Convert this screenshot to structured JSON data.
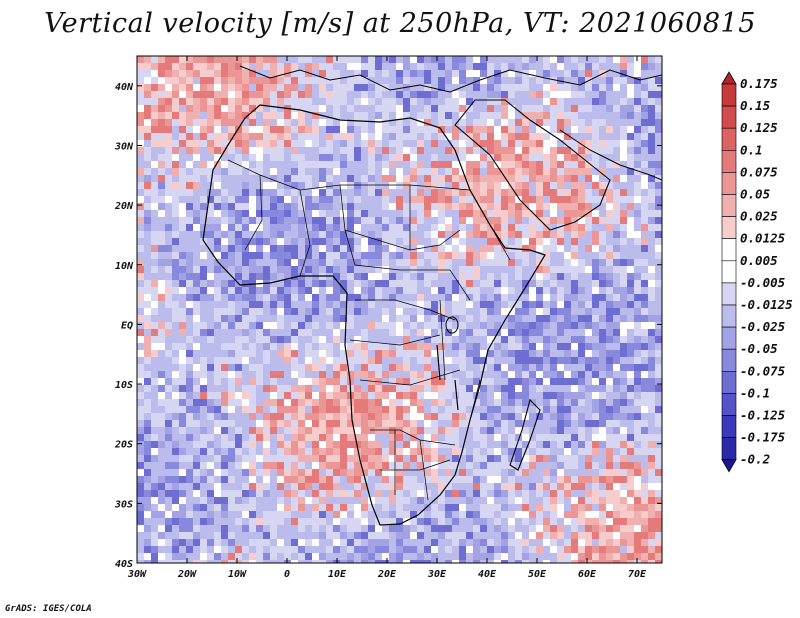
{
  "title": "Vertical velocity [m/s] at 250hPa, VT: 2021060815",
  "credit": "GrADS: IGES/COLA",
  "map": {
    "lon_range": [
      -30,
      75
    ],
    "lat_range": [
      -40,
      45
    ],
    "lon_ticks": [
      {
        "value": -30,
        "label": "30W"
      },
      {
        "value": -20,
        "label": "20W"
      },
      {
        "value": -10,
        "label": "10W"
      },
      {
        "value": 0,
        "label": "0"
      },
      {
        "value": 10,
        "label": "10E"
      },
      {
        "value": 20,
        "label": "20E"
      },
      {
        "value": 30,
        "label": "30E"
      },
      {
        "value": 40,
        "label": "40E"
      },
      {
        "value": 50,
        "label": "50E"
      },
      {
        "value": 60,
        "label": "60E"
      },
      {
        "value": 70,
        "label": "70E"
      }
    ],
    "lat_ticks": [
      {
        "value": 40,
        "label": "40N"
      },
      {
        "value": 30,
        "label": "30N"
      },
      {
        "value": 20,
        "label": "20N"
      },
      {
        "value": 10,
        "label": "10N"
      },
      {
        "value": 0,
        "label": "EQ"
      },
      {
        "value": -10,
        "label": "10S"
      },
      {
        "value": -20,
        "label": "20S"
      },
      {
        "value": -30,
        "label": "30S"
      },
      {
        "value": -40,
        "label": "40S"
      }
    ]
  },
  "colorbar": {
    "levels": [
      "0.175",
      "0.15",
      "0.125",
      "0.1",
      "0.075",
      "0.05",
      "0.025",
      "0.0125",
      "0.005",
      "-0.005",
      "-0.0125",
      "-0.025",
      "-0.05",
      "-0.075",
      "-0.1",
      "-0.125",
      "-0.175",
      "-0.2"
    ],
    "colors": [
      "#b0262c",
      "#c73a3a",
      "#d24c4c",
      "#dd6363",
      "#e47a7a",
      "#eb9595",
      "#f1b0b0",
      "#f6cccc",
      "#ffffff",
      "#ffffff",
      "#d6d6f2",
      "#bcbcec",
      "#a2a2e4",
      "#8888dc",
      "#6e6ed2",
      "#5454c8",
      "#3a3abd",
      "#2a2aa8",
      "#1a1a90"
    ]
  }
}
